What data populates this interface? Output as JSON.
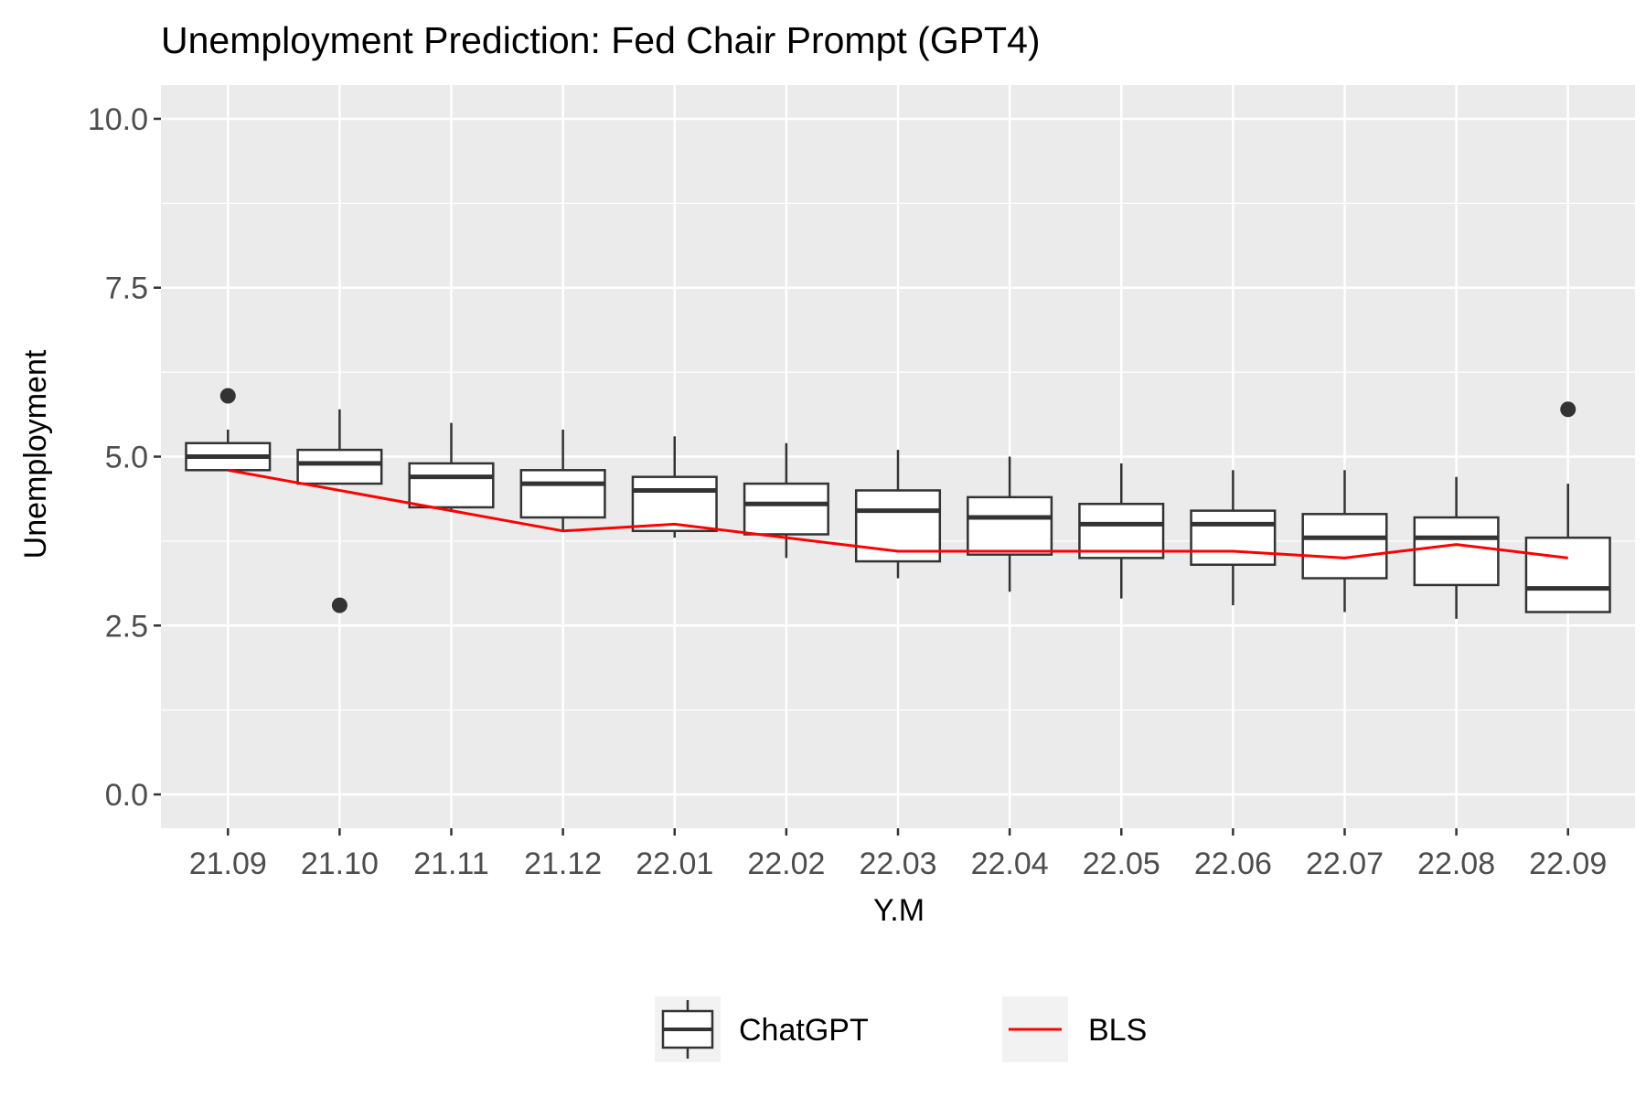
{
  "chart_data": {
    "type": "boxplot",
    "title": "Unemployment Prediction: Fed Chair Prompt (GPT4)",
    "xlabel": "Y.M",
    "ylabel": "Unemployment",
    "ylim": [
      -0.5,
      10.5
    ],
    "yticks": [
      "0.0",
      "2.5",
      "5.0",
      "7.5",
      "10.0"
    ],
    "ytick_values": [
      0,
      2.5,
      5,
      7.5,
      10
    ],
    "categories": [
      "21.09",
      "21.10",
      "21.11",
      "21.12",
      "22.01",
      "22.02",
      "22.03",
      "22.04",
      "22.05",
      "22.06",
      "22.07",
      "22.08",
      "22.09"
    ],
    "series": [
      {
        "name": "ChatGPT",
        "kind": "box",
        "color": "#333333",
        "boxes": [
          {
            "min": 4.8,
            "q1": 4.8,
            "median": 5.0,
            "q3": 5.2,
            "max": 5.4,
            "outliers": [
              5.9
            ]
          },
          {
            "min": 4.6,
            "q1": 4.6,
            "median": 4.9,
            "q3": 5.1,
            "max": 5.7,
            "outliers": [
              2.8
            ]
          },
          {
            "min": 4.2,
            "q1": 4.25,
            "median": 4.7,
            "q3": 4.9,
            "max": 5.5,
            "outliers": []
          },
          {
            "min": 3.9,
            "q1": 4.1,
            "median": 4.6,
            "q3": 4.8,
            "max": 5.4,
            "outliers": []
          },
          {
            "min": 3.8,
            "q1": 3.9,
            "median": 4.5,
            "q3": 4.7,
            "max": 5.3,
            "outliers": []
          },
          {
            "min": 3.5,
            "q1": 3.85,
            "median": 4.3,
            "q3": 4.6,
            "max": 5.2,
            "outliers": []
          },
          {
            "min": 3.2,
            "q1": 3.45,
            "median": 4.2,
            "q3": 4.5,
            "max": 5.1,
            "outliers": []
          },
          {
            "min": 3.0,
            "q1": 3.55,
            "median": 4.1,
            "q3": 4.4,
            "max": 5.0,
            "outliers": []
          },
          {
            "min": 2.9,
            "q1": 3.5,
            "median": 4.0,
            "q3": 4.3,
            "max": 4.9,
            "outliers": []
          },
          {
            "min": 2.8,
            "q1": 3.4,
            "median": 4.0,
            "q3": 4.2,
            "max": 4.8,
            "outliers": []
          },
          {
            "min": 2.7,
            "q1": 3.2,
            "median": 3.8,
            "q3": 4.15,
            "max": 4.8,
            "outliers": []
          },
          {
            "min": 2.6,
            "q1": 3.1,
            "median": 3.8,
            "q3": 4.1,
            "max": 4.7,
            "outliers": []
          },
          {
            "min": 2.7,
            "q1": 2.7,
            "median": 3.05,
            "q3": 3.8,
            "max": 4.6,
            "outliers": [
              5.7
            ]
          }
        ]
      },
      {
        "name": "BLS",
        "kind": "line",
        "color": "#ff0000",
        "values": [
          4.8,
          4.5,
          4.2,
          3.9,
          4.0,
          3.8,
          3.6,
          3.6,
          3.6,
          3.6,
          3.5,
          3.7,
          3.5
        ]
      }
    ],
    "legend": {
      "position": "bottom",
      "entries": [
        "ChatGPT",
        "BLS"
      ]
    },
    "grid": true,
    "panel_background": "#ebebeb"
  }
}
